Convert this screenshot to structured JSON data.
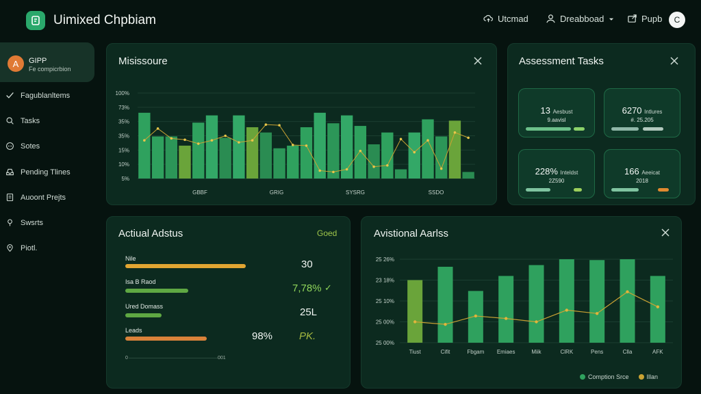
{
  "app": {
    "title": "Uimixed Chpbiam"
  },
  "topnav": {
    "upload": "Utcmad",
    "dashboard": "Dreabboad",
    "publish": "Pupb",
    "avatar_letter": "C"
  },
  "profile": {
    "initial": "A",
    "name": "GIPP",
    "subtitle": "Fe compicrbion"
  },
  "sidebar": {
    "items": [
      {
        "label": "Fagublanltems",
        "icon": "check-icon"
      },
      {
        "label": "Tasks",
        "icon": "search-icon"
      },
      {
        "label": "Sotes",
        "icon": "circle-dots-icon"
      },
      {
        "label": "Pending Tlines",
        "icon": "inbox-icon"
      },
      {
        "label": "Auoont Prejts",
        "icon": "document-icon"
      },
      {
        "label": "Swsrts",
        "icon": "pin-icon"
      },
      {
        "label": "Piotl.",
        "icon": "location-icon"
      }
    ]
  },
  "missisoure": {
    "title": "Misissoure",
    "chart_data": {
      "type": "bar",
      "y_tick_labels": [
        "100%",
        "73%",
        "35%",
        "35%",
        "15%",
        "10%",
        "5%"
      ],
      "x_tick_labels": [
        "GBBF",
        "GRIG",
        "SYSRG",
        "SSDO"
      ],
      "values": [
        100,
        64,
        64,
        50,
        85,
        96,
        62,
        96,
        78,
        70,
        46,
        50,
        78,
        100,
        84,
        96,
        80,
        52,
        70,
        14,
        70,
        90,
        64,
        88,
        10
      ],
      "green_shades": [
        "#2fa15e",
        "#2fa15e",
        "#2c9658",
        "#6aa43a",
        "#2fa15e",
        "#33a867",
        "#2a8c52",
        "#33a867",
        "#6aa43a",
        "#2a8c52",
        "#2c9658",
        "#2fa15e",
        "#2fa15e",
        "#33a867",
        "#2c9658",
        "#33a867",
        "#2fa15e",
        "#2a8c52",
        "#2fa15e",
        "#2c9658",
        "#33a867",
        "#2fa15e",
        "#2c9658",
        "#6aa43a",
        "#2a8c52"
      ],
      "line": [
        58,
        76,
        61,
        59,
        53,
        58,
        65,
        55,
        58,
        82,
        81,
        51,
        50,
        12,
        10,
        14,
        42,
        18,
        20,
        60,
        40,
        58,
        15,
        70,
        62
      ],
      "ylim": [
        0,
        130
      ]
    }
  },
  "assessment": {
    "title": "Assessment Tasks",
    "tiles": [
      {
        "value": "13",
        "unit": "Aesbust",
        "sub": "9.aavisl",
        "bar_color": "#6cc08a",
        "chip_color": "#8bd26a"
      },
      {
        "value": "6270",
        "unit": "Intlures",
        "sub": "#. 25.205",
        "bar_color": "#8fb7a8",
        "chip_color": "#b2c9be"
      },
      {
        "value": "228%",
        "unit": "Inteldst",
        "sub": "2Z590",
        "bar_color": "#7fc4a0",
        "chip_color": "#9ccf5c"
      },
      {
        "value": "166",
        "unit": "Aeeicat",
        "sub": "2018",
        "bar_color": "#7fc4a0",
        "chip_color": "#e08a30"
      }
    ]
  },
  "actual": {
    "title": "Actiual Adstus",
    "badge": "Goed",
    "rows": [
      {
        "label": "Nile",
        "value": "30",
        "color": "#e2a532",
        "fill": 1.0
      },
      {
        "label": "Isa B Raod",
        "value": "7,78%",
        "color": "#5fa843",
        "fill": 0.52
      },
      {
        "label": "Ured Domass",
        "value": "25L",
        "color": "#5fa843",
        "fill": 0.3
      },
      {
        "label": "Leads",
        "value": "98%",
        "value2": "PK.",
        "color": "#d9823a",
        "fill": 0.68
      }
    ],
    "axis_start": "0",
    "axis_end": "001"
  },
  "avistional": {
    "title": "Avistional Aarlss",
    "chart_data": {
      "type": "bar",
      "categories": [
        "Tiust",
        "Cifit",
        "Fbgam",
        "Emiaes",
        "Miik",
        "ClRK",
        "Pens",
        "Clla",
        "AFK"
      ],
      "values": [
        75,
        91,
        62,
        80,
        93,
        100,
        99,
        100,
        80
      ],
      "line": [
        25,
        22,
        32,
        29,
        25,
        39,
        35,
        61,
        43
      ],
      "y_tick_labels": [
        "25 26%",
        "23 18%",
        "25 10%",
        "25 00%",
        "25 00%"
      ],
      "ylim": [
        0,
        100
      ],
      "legend": [
        "Comption Srce",
        "Illan"
      ],
      "bar_color": "#2fa15e",
      "first_bar_color": "#6aa43a",
      "line_color": "#c9a233"
    }
  }
}
